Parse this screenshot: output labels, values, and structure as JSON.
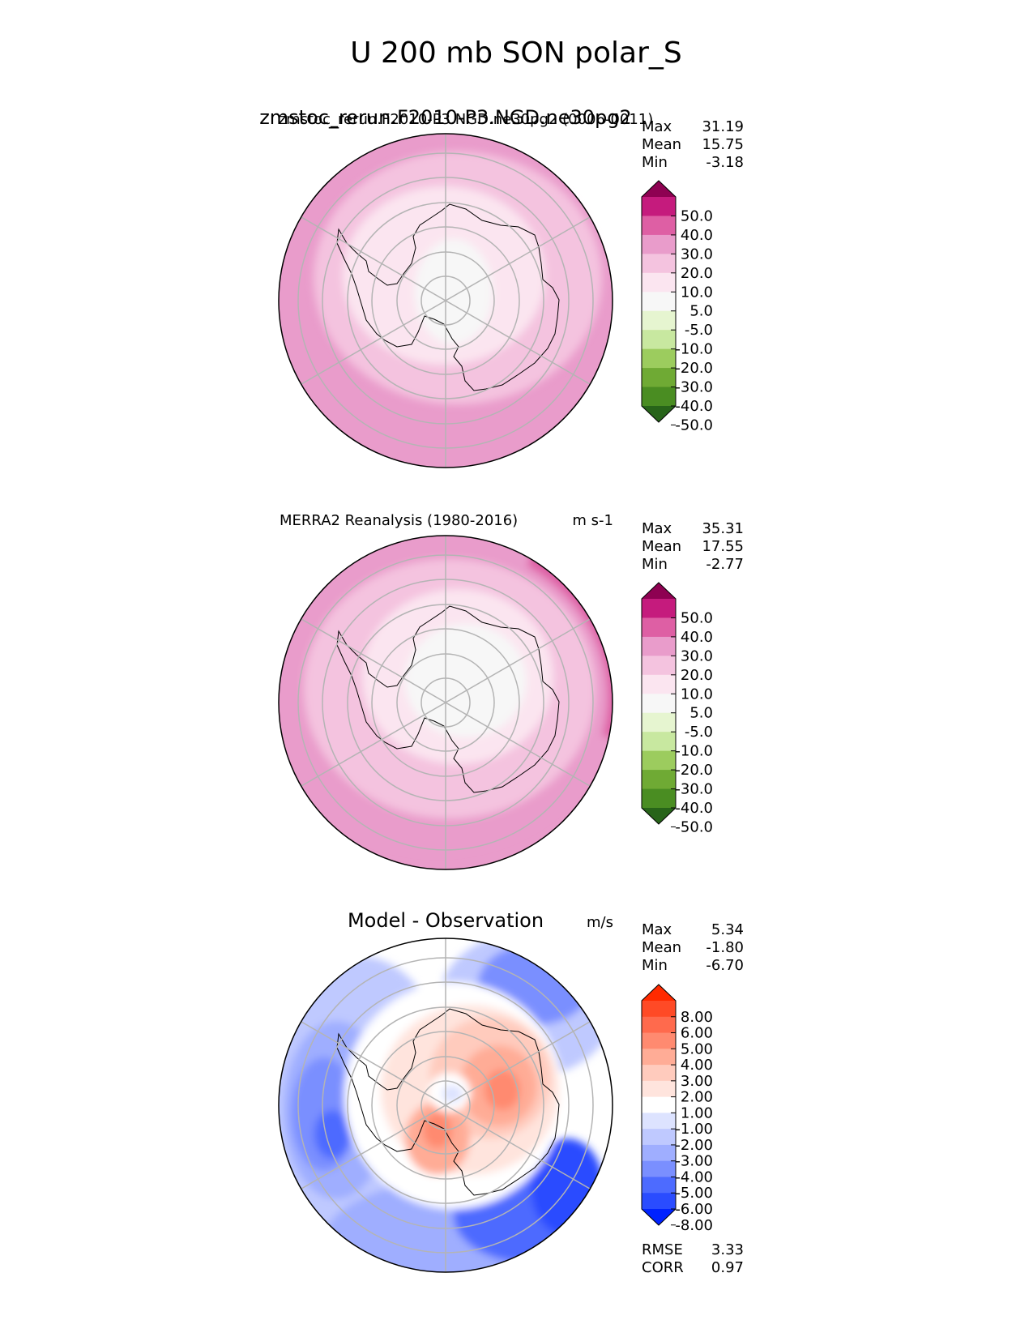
{
  "figure": {
    "title": "U 200 mb SON polar_S"
  },
  "chart_data": [
    {
      "type": "heatmap",
      "projection": "south-polar-stereographic",
      "title_overlap": "zmstoc_rerun.F2010-P3.NGD.ne30pg2",
      "title": "zmstoc_rerun.F2010-P3.NGD.ne30pg2 (0006-0011)",
      "units": "",
      "stats": [
        {
          "label": "Max",
          "value": "31.19"
        },
        {
          "label": "Mean",
          "value": "15.75"
        },
        {
          "label": "Min",
          "value": "-3.18"
        }
      ],
      "colorbar": {
        "levels": [
          "50.0",
          "40.0",
          "30.0",
          "20.0",
          "10.0",
          "5.0",
          "-5.0",
          "-10.0",
          "-20.0",
          "-30.0",
          "-40.0",
          "-50.0"
        ],
        "colors": [
          "#8e0152",
          "#c51b7d",
          "#de5fa4",
          "#e99ccb",
          "#f4c3df",
          "#fbe5f0",
          "#f7f7f7",
          "#e6f5d0",
          "#c8e8a0",
          "#9ccc5e",
          "#6faa34",
          "#4a8d22",
          "#276419"
        ]
      },
      "field_mean": 15.75
    },
    {
      "type": "heatmap",
      "projection": "south-polar-stereographic",
      "title": "MERRA2 Reanalysis (1980-2016)",
      "units": "m s-1",
      "stats": [
        {
          "label": "Max",
          "value": "35.31"
        },
        {
          "label": "Mean",
          "value": "17.55"
        },
        {
          "label": "Min",
          "value": "-2.77"
        }
      ],
      "colorbar": {
        "levels": [
          "50.0",
          "40.0",
          "30.0",
          "20.0",
          "10.0",
          "5.0",
          "-5.0",
          "-10.0",
          "-20.0",
          "-30.0",
          "-40.0",
          "-50.0"
        ],
        "colors": [
          "#8e0152",
          "#c51b7d",
          "#de5fa4",
          "#e99ccb",
          "#f4c3df",
          "#fbe5f0",
          "#f7f7f7",
          "#e6f5d0",
          "#c8e8a0",
          "#9ccc5e",
          "#6faa34",
          "#4a8d22",
          "#276419"
        ]
      },
      "field_mean": 17.55
    },
    {
      "type": "heatmap",
      "projection": "south-polar-stereographic",
      "title": "Model - Observation",
      "units": "m/s",
      "stats": [
        {
          "label": "Max",
          "value": "5.34"
        },
        {
          "label": "Mean",
          "value": "-1.80"
        },
        {
          "label": "Min",
          "value": "-6.70"
        }
      ],
      "colorbar": {
        "levels": [
          "8.00",
          "6.00",
          "5.00",
          "4.00",
          "3.00",
          "2.00",
          "1.00",
          "-1.00",
          "-2.00",
          "-3.00",
          "-4.00",
          "-5.00",
          "-6.00",
          "-8.00"
        ],
        "colors": [
          "#ff2a00",
          "#ff4a26",
          "#ff6a4d",
          "#ff8a70",
          "#ffac96",
          "#ffcbbd",
          "#ffe4dd",
          "#ffffff",
          "#dde3ff",
          "#bfc9ff",
          "#9faeff",
          "#7a8fff",
          "#4d6bff",
          "#2a4cff",
          "#0022ff"
        ]
      },
      "field_mean": -1.8,
      "metrics": [
        {
          "label": "RMSE",
          "value": "3.33"
        },
        {
          "label": "CORR",
          "value": "0.97"
        }
      ]
    }
  ]
}
